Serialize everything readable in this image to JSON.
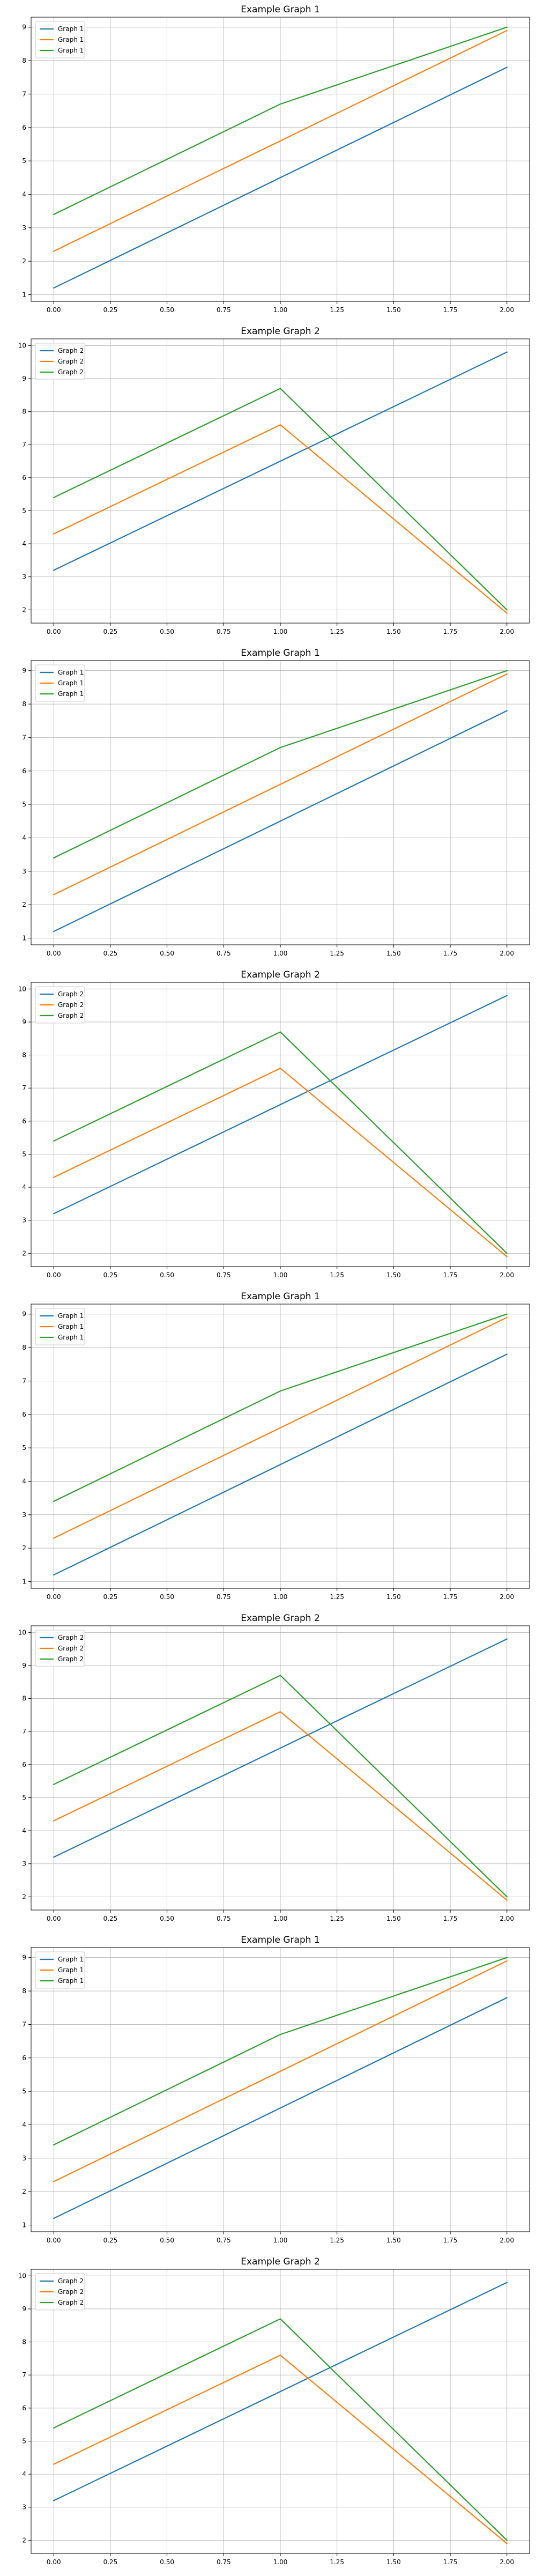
{
  "chart_data": [
    {
      "type": "line",
      "title": "Example Graph 1",
      "xlabel": "",
      "ylabel": "",
      "x": [
        0,
        1,
        2
      ],
      "xlim": [
        -0.1,
        2.1
      ],
      "ylim": [
        0.8,
        9.3
      ],
      "xticks": [
        "0.00",
        "0.25",
        "0.50",
        "0.75",
        "1.00",
        "1.25",
        "1.50",
        "1.75",
        "2.00"
      ],
      "yticks": [
        1,
        2,
        3,
        4,
        5,
        6,
        7,
        8,
        9
      ],
      "grid": true,
      "legend_position": "top-left",
      "series": [
        {
          "name": "Graph 1",
          "color": "#1f77b4",
          "values": [
            1.2,
            4.5,
            7.8
          ]
        },
        {
          "name": "Graph 1",
          "color": "#ff7f0e",
          "values": [
            2.3,
            5.6,
            8.9
          ]
        },
        {
          "name": "Graph 1",
          "color": "#2ca02c",
          "values": [
            3.4,
            6.7,
            9.0
          ]
        }
      ]
    },
    {
      "type": "line",
      "title": "Example Graph 2",
      "xlabel": "",
      "ylabel": "",
      "x": [
        0,
        1,
        2
      ],
      "xlim": [
        -0.1,
        2.1
      ],
      "ylim": [
        1.6,
        10.2
      ],
      "xticks": [
        "0.00",
        "0.25",
        "0.50",
        "0.75",
        "1.00",
        "1.25",
        "1.50",
        "1.75",
        "2.00"
      ],
      "yticks": [
        2,
        3,
        4,
        5,
        6,
        7,
        8,
        9,
        10
      ],
      "grid": true,
      "legend_position": "top-left",
      "series": [
        {
          "name": "Graph 2",
          "color": "#1f77b4",
          "values": [
            3.2,
            6.5,
            9.8
          ]
        },
        {
          "name": "Graph 2",
          "color": "#ff7f0e",
          "values": [
            4.3,
            7.6,
            1.9
          ]
        },
        {
          "name": "Graph 2",
          "color": "#2ca02c",
          "values": [
            5.4,
            8.7,
            2.0
          ]
        }
      ]
    },
    {
      "type": "line",
      "title": "Example Graph 1",
      "xlabel": "",
      "ylabel": "",
      "x": [
        0,
        1,
        2
      ],
      "xlim": [
        -0.1,
        2.1
      ],
      "ylim": [
        0.8,
        9.3
      ],
      "xticks": [
        "0.00",
        "0.25",
        "0.50",
        "0.75",
        "1.00",
        "1.25",
        "1.50",
        "1.75",
        "2.00"
      ],
      "yticks": [
        1,
        2,
        3,
        4,
        5,
        6,
        7,
        8,
        9
      ],
      "grid": true,
      "legend_position": "top-left",
      "series": [
        {
          "name": "Graph 1",
          "color": "#1f77b4",
          "values": [
            1.2,
            4.5,
            7.8
          ]
        },
        {
          "name": "Graph 1",
          "color": "#ff7f0e",
          "values": [
            2.3,
            5.6,
            8.9
          ]
        },
        {
          "name": "Graph 1",
          "color": "#2ca02c",
          "values": [
            3.4,
            6.7,
            9.0
          ]
        }
      ]
    },
    {
      "type": "line",
      "title": "Example Graph 2",
      "xlabel": "",
      "ylabel": "",
      "x": [
        0,
        1,
        2
      ],
      "xlim": [
        -0.1,
        2.1
      ],
      "ylim": [
        1.6,
        10.2
      ],
      "xticks": [
        "0.00",
        "0.25",
        "0.50",
        "0.75",
        "1.00",
        "1.25",
        "1.50",
        "1.75",
        "2.00"
      ],
      "yticks": [
        2,
        3,
        4,
        5,
        6,
        7,
        8,
        9,
        10
      ],
      "grid": true,
      "legend_position": "top-left",
      "series": [
        {
          "name": "Graph 2",
          "color": "#1f77b4",
          "values": [
            3.2,
            6.5,
            9.8
          ]
        },
        {
          "name": "Graph 2",
          "color": "#ff7f0e",
          "values": [
            4.3,
            7.6,
            1.9
          ]
        },
        {
          "name": "Graph 2",
          "color": "#2ca02c",
          "values": [
            5.4,
            8.7,
            2.0
          ]
        }
      ]
    },
    {
      "type": "line",
      "title": "Example Graph 1",
      "xlabel": "",
      "ylabel": "",
      "x": [
        0,
        1,
        2
      ],
      "xlim": [
        -0.1,
        2.1
      ],
      "ylim": [
        0.8,
        9.3
      ],
      "xticks": [
        "0.00",
        "0.25",
        "0.50",
        "0.75",
        "1.00",
        "1.25",
        "1.50",
        "1.75",
        "2.00"
      ],
      "yticks": [
        1,
        2,
        3,
        4,
        5,
        6,
        7,
        8,
        9
      ],
      "grid": true,
      "legend_position": "top-left",
      "series": [
        {
          "name": "Graph 1",
          "color": "#1f77b4",
          "values": [
            1.2,
            4.5,
            7.8
          ]
        },
        {
          "name": "Graph 1",
          "color": "#ff7f0e",
          "values": [
            2.3,
            5.6,
            8.9
          ]
        },
        {
          "name": "Graph 1",
          "color": "#2ca02c",
          "values": [
            3.4,
            6.7,
            9.0
          ]
        }
      ]
    },
    {
      "type": "line",
      "title": "Example Graph 2",
      "xlabel": "",
      "ylabel": "",
      "x": [
        0,
        1,
        2
      ],
      "xlim": [
        -0.1,
        2.1
      ],
      "ylim": [
        1.6,
        10.2
      ],
      "xticks": [
        "0.00",
        "0.25",
        "0.50",
        "0.75",
        "1.00",
        "1.25",
        "1.50",
        "1.75",
        "2.00"
      ],
      "yticks": [
        2,
        3,
        4,
        5,
        6,
        7,
        8,
        9,
        10
      ],
      "grid": true,
      "legend_position": "top-left",
      "series": [
        {
          "name": "Graph 2",
          "color": "#1f77b4",
          "values": [
            3.2,
            6.5,
            9.8
          ]
        },
        {
          "name": "Graph 2",
          "color": "#ff7f0e",
          "values": [
            4.3,
            7.6,
            1.9
          ]
        },
        {
          "name": "Graph 2",
          "color": "#2ca02c",
          "values": [
            5.4,
            8.7,
            2.0
          ]
        }
      ]
    },
    {
      "type": "line",
      "title": "Example Graph 1",
      "xlabel": "",
      "ylabel": "",
      "x": [
        0,
        1,
        2
      ],
      "xlim": [
        -0.1,
        2.1
      ],
      "ylim": [
        0.8,
        9.3
      ],
      "xticks": [
        "0.00",
        "0.25",
        "0.50",
        "0.75",
        "1.00",
        "1.25",
        "1.50",
        "1.75",
        "2.00"
      ],
      "yticks": [
        1,
        2,
        3,
        4,
        5,
        6,
        7,
        8,
        9
      ],
      "grid": true,
      "legend_position": "top-left",
      "series": [
        {
          "name": "Graph 1",
          "color": "#1f77b4",
          "values": [
            1.2,
            4.5,
            7.8
          ]
        },
        {
          "name": "Graph 1",
          "color": "#ff7f0e",
          "values": [
            2.3,
            5.6,
            8.9
          ]
        },
        {
          "name": "Graph 1",
          "color": "#2ca02c",
          "values": [
            3.4,
            6.7,
            9.0
          ]
        }
      ]
    },
    {
      "type": "line",
      "title": "Example Graph 2",
      "xlabel": "",
      "ylabel": "",
      "x": [
        0,
        1,
        2
      ],
      "xlim": [
        -0.1,
        2.1
      ],
      "ylim": [
        1.6,
        10.2
      ],
      "xticks": [
        "0.00",
        "0.25",
        "0.50",
        "0.75",
        "1.00",
        "1.25",
        "1.50",
        "1.75",
        "2.00"
      ],
      "yticks": [
        2,
        3,
        4,
        5,
        6,
        7,
        8,
        9,
        10
      ],
      "grid": true,
      "legend_position": "top-left",
      "series": [
        {
          "name": "Graph 2",
          "color": "#1f77b4",
          "values": [
            3.2,
            6.5,
            9.8
          ]
        },
        {
          "name": "Graph 2",
          "color": "#ff7f0e",
          "values": [
            4.3,
            7.6,
            1.9
          ]
        },
        {
          "name": "Graph 2",
          "color": "#2ca02c",
          "values": [
            5.4,
            8.7,
            2.0
          ]
        }
      ]
    }
  ]
}
